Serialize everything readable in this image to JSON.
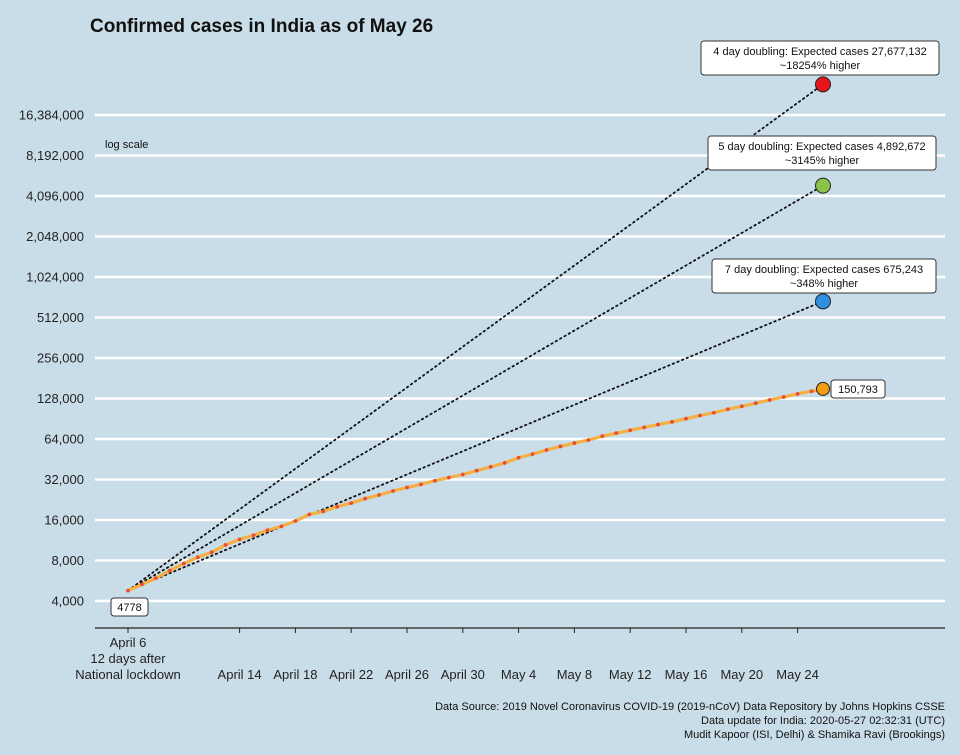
{
  "colors": {
    "background": "#c9dde8",
    "gridline": "#ffffff",
    "actual_line": "#f5b041",
    "actual_points": "#e74c3c",
    "proj_4day": "#e8141c",
    "proj_5day": "#8bc34a",
    "proj_7day": "#2f8fe0",
    "actual_end": "#f39c12"
  },
  "chart_data": {
    "type": "line",
    "title": "Confirmed cases in India as of May 26",
    "scale_note": "log scale",
    "y_scale": "log2",
    "ylim": [
      2900,
      24000000
    ],
    "y_ticks": [
      4000,
      8000,
      16000,
      32000,
      64000,
      128000,
      256000,
      512000,
      1024000,
      2048000,
      4096000,
      8192000,
      16384000
    ],
    "y_tick_labels": [
      "4,000",
      "8,000",
      "16,000",
      "32,000",
      "64,000",
      "128,000",
      "256,000",
      "512,000",
      "1,024,000",
      "2,048,000",
      "4,096,000",
      "8,192,000",
      "16,384,000"
    ],
    "x_dates": [
      "2020-04-06",
      "2020-04-07",
      "2020-04-08",
      "2020-04-09",
      "2020-04-10",
      "2020-04-11",
      "2020-04-12",
      "2020-04-13",
      "2020-04-14",
      "2020-04-15",
      "2020-04-16",
      "2020-04-17",
      "2020-04-18",
      "2020-04-19",
      "2020-04-20",
      "2020-04-21",
      "2020-04-22",
      "2020-04-23",
      "2020-04-24",
      "2020-04-25",
      "2020-04-26",
      "2020-04-27",
      "2020-04-28",
      "2020-04-29",
      "2020-04-30",
      "2020-05-01",
      "2020-05-02",
      "2020-05-03",
      "2020-05-04",
      "2020-05-05",
      "2020-05-06",
      "2020-05-07",
      "2020-05-08",
      "2020-05-09",
      "2020-05-10",
      "2020-05-11",
      "2020-05-12",
      "2020-05-13",
      "2020-05-14",
      "2020-05-15",
      "2020-05-16",
      "2020-05-17",
      "2020-05-18",
      "2020-05-19",
      "2020-05-20",
      "2020-05-21",
      "2020-05-22",
      "2020-05-23",
      "2020-05-24",
      "2020-05-25",
      "2020-05-26"
    ],
    "series": [
      {
        "values": [
          4778,
          5311,
          5916,
          6725,
          7598,
          8446,
          9205,
          10453,
          11487,
          12322,
          13430,
          14352,
          15722,
          17615,
          18539,
          20080,
          21370,
          23077,
          24530,
          26283,
          27890,
          29451,
          31324,
          33062,
          34863,
          37257,
          39699,
          42505,
          46437,
          49400,
          52987,
          56351,
          59695,
          62808,
          67161,
          70768,
          74292,
          78055,
          81997,
          85784,
          90648,
          95698,
          100328,
          106475,
          112028,
          118226,
          124794,
          131423,
          138536,
          144950,
          150793
        ]
      }
    ],
    "start_label": "4778",
    "end_label": "150,793",
    "projections": [
      {
        "value": 27677132,
        "line1": "4 day doubling: Expected cases 27,677,132",
        "line2": "~18254% higher"
      },
      {
        "value": 4892672,
        "line1": "5 day doubling: Expected cases 4,892,672",
        "line2": "~3145% higher"
      },
      {
        "value": 675243,
        "line1": "7 day doubling: Expected cases 675,243",
        "line2": "~348% higher"
      }
    ],
    "x_ticks": [
      {
        "date": "2020-04-06",
        "lines": [
          "April 6",
          "12 days after",
          "National lockdown"
        ]
      },
      {
        "date": "2020-04-14",
        "lines": [
          "April 14"
        ]
      },
      {
        "date": "2020-04-18",
        "lines": [
          "April 18"
        ]
      },
      {
        "date": "2020-04-22",
        "lines": [
          "April 22"
        ]
      },
      {
        "date": "2020-04-26",
        "lines": [
          "April 26"
        ]
      },
      {
        "date": "2020-04-30",
        "lines": [
          "April 30"
        ]
      },
      {
        "date": "2020-05-04",
        "lines": [
          "May 4"
        ]
      },
      {
        "date": "2020-05-08",
        "lines": [
          "May 8"
        ]
      },
      {
        "date": "2020-05-12",
        "lines": [
          "May 12"
        ]
      },
      {
        "date": "2020-05-16",
        "lines": [
          "May 16"
        ]
      },
      {
        "date": "2020-05-20",
        "lines": [
          "May 20"
        ]
      },
      {
        "date": "2020-05-24",
        "lines": [
          "May 24"
        ]
      }
    ],
    "source_lines": [
      "Data Source: 2019 Novel Coronavirus COVID-19 (2019-nCoV) Data Repository by Johns Hopkins CSSE",
      "Data update for India: 2020-05-27 02:32:31 (UTC)",
      "Mudit Kapoor (ISI, Delhi) & Shamika Ravi (Brookings)"
    ]
  }
}
